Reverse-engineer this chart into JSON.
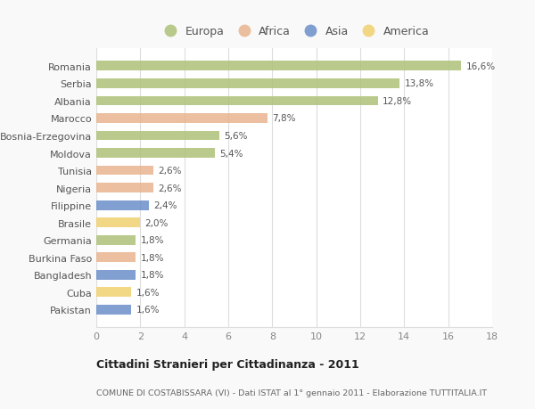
{
  "countries": [
    "Romania",
    "Serbia",
    "Albania",
    "Marocco",
    "Bosnia-Erzegovina",
    "Moldova",
    "Tunisia",
    "Nigeria",
    "Filippine",
    "Brasile",
    "Germania",
    "Burkina Faso",
    "Bangladesh",
    "Cuba",
    "Pakistan"
  ],
  "values": [
    16.6,
    13.8,
    12.8,
    7.8,
    5.6,
    5.4,
    2.6,
    2.6,
    2.4,
    2.0,
    1.8,
    1.8,
    1.8,
    1.6,
    1.6
  ],
  "labels": [
    "16,6%",
    "13,8%",
    "12,8%",
    "7,8%",
    "5,6%",
    "5,4%",
    "2,6%",
    "2,6%",
    "2,4%",
    "2,0%",
    "1,8%",
    "1,8%",
    "1,8%",
    "1,6%",
    "1,6%"
  ],
  "continents": [
    "Europa",
    "Europa",
    "Europa",
    "Africa",
    "Europa",
    "Europa",
    "Africa",
    "Africa",
    "Asia",
    "America",
    "Europa",
    "Africa",
    "Asia",
    "America",
    "Asia"
  ],
  "colors": {
    "Europa": "#adc178",
    "Africa": "#e8b48e",
    "Asia": "#6b8ec8",
    "America": "#f0d070"
  },
  "legend_order": [
    "Europa",
    "Africa",
    "Asia",
    "America"
  ],
  "title1": "Cittadini Stranieri per Cittadinanza - 2011",
  "title2": "COMUNE DI COSTABISSARA (VI) - Dati ISTAT al 1° gennaio 2011 - Elaborazione TUTTITALIA.IT",
  "xlim": [
    0,
    18
  ],
  "xticks": [
    0,
    2,
    4,
    6,
    8,
    10,
    12,
    14,
    16,
    18
  ],
  "fig_background": "#f9f9f9",
  "plot_background": "#ffffff",
  "grid_color": "#dddddd",
  "label_color": "#555555",
  "tick_color": "#888888",
  "title_color": "#222222",
  "subtitle_color": "#666666"
}
